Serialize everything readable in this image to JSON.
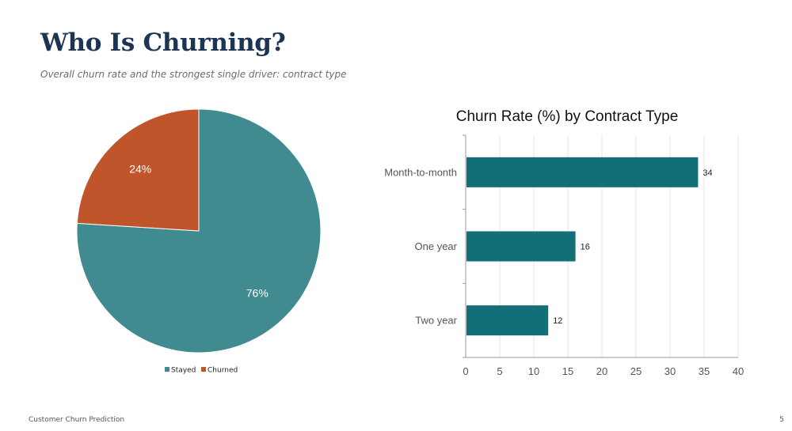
{
  "slide": {
    "title": "Who Is Churning?",
    "subtitle": "Overall churn rate and the strongest single driver: contract type",
    "footer": "Customer Churn Prediction",
    "page_number": "5"
  },
  "chart_data": [
    {
      "type": "pie",
      "slices": [
        {
          "name": "Stayed",
          "value": 76,
          "label": "76%",
          "color": "#3f8b8f"
        },
        {
          "name": "Churned",
          "value": 24,
          "label": "24%",
          "color": "#c0552b"
        }
      ],
      "legend": {
        "position": "bottom",
        "entries": [
          "Stayed",
          "Churned"
        ]
      }
    },
    {
      "type": "bar",
      "orientation": "horizontal",
      "title": "Churn Rate (%) by Contract Type",
      "categories": [
        "Month-to-month",
        "One year",
        "Two year"
      ],
      "values": [
        34,
        16,
        12
      ],
      "data_labels": [
        "34",
        "16",
        "12"
      ],
      "xlim": [
        0,
        40
      ],
      "x_ticks": [
        0,
        5,
        10,
        15,
        20,
        25,
        30,
        35,
        40
      ],
      "grid": true,
      "color": "#126f78"
    }
  ]
}
